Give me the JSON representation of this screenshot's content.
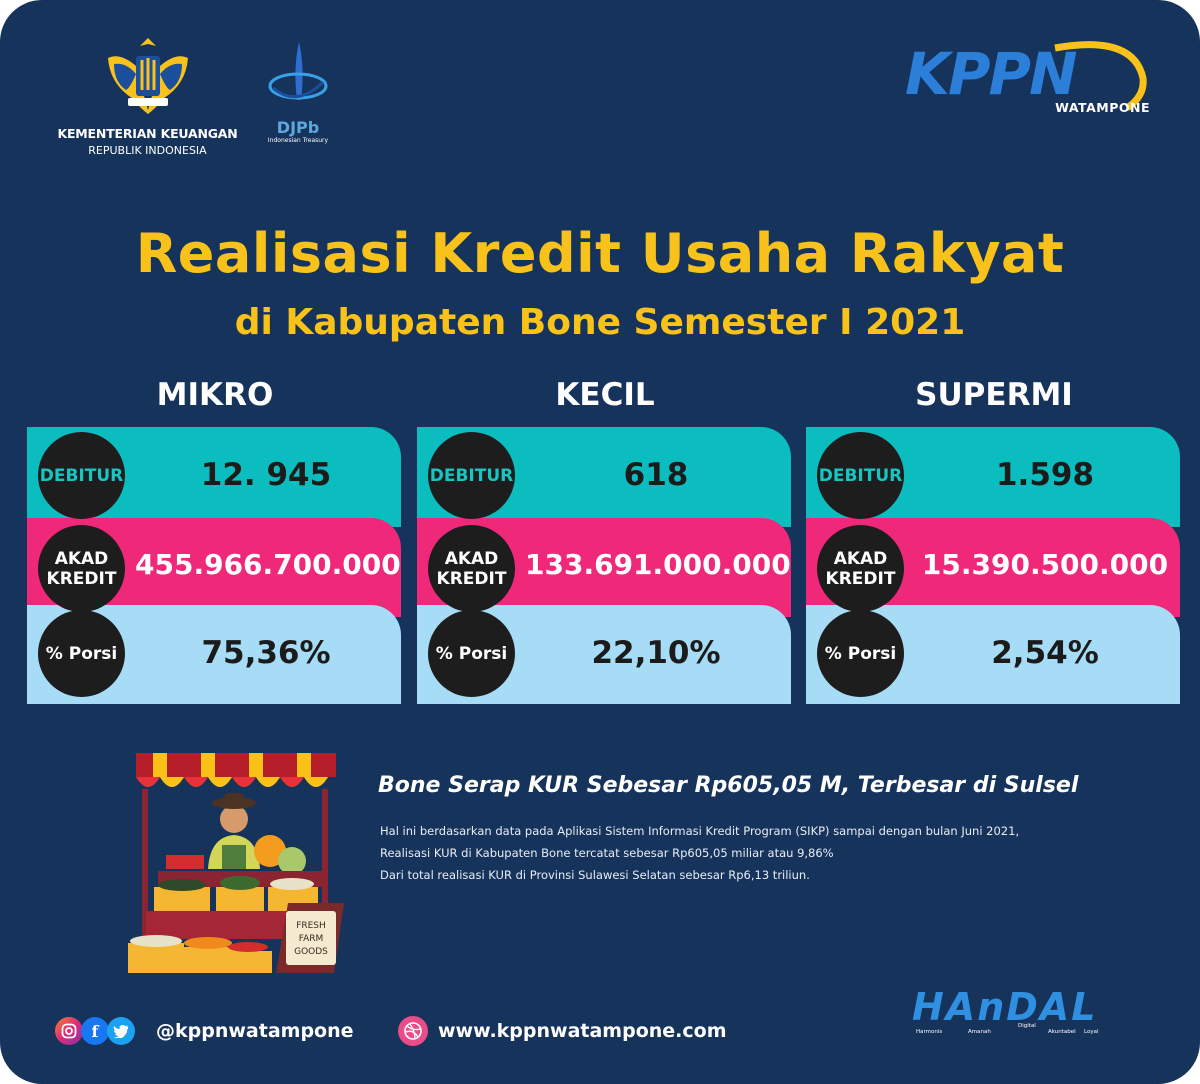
{
  "header": {
    "ministry_line1": "KEMENTERIAN KEUANGAN",
    "ministry_line2": "REPUBLIK INDONESIA",
    "djpb_name": "DJPb",
    "djpb_sub": "Indonesian Treasury",
    "kppn_word": "KPPN",
    "kppn_city": "WATAMPONE"
  },
  "title": {
    "line1": "Realisasi Kredit Usaha Rakyat",
    "line2": "di Kabupaten Bone Semester I 2021"
  },
  "labels": {
    "debitur": "DEBITUR",
    "akad1": "AKAD",
    "akad2": "KREDIT",
    "porsi": "% Porsi"
  },
  "categories": [
    {
      "name": "MIKRO",
      "debitur": "12. 945",
      "akad_kredit": "455.966.700.000",
      "porsi": "75,36%"
    },
    {
      "name": "KECIL",
      "debitur": "618",
      "akad_kredit": "133.691.000.000",
      "porsi": "22,10%"
    },
    {
      "name": "SUPERMI",
      "debitur": "1.598",
      "akad_kredit": "15.390.500.000",
      "porsi": "2,54%"
    }
  ],
  "news": {
    "headline": "Bone Serap KUR Sebesar Rp605,05 M, Terbesar di Sulsel",
    "lines": [
      "Hal ini berdasarkan data pada Aplikasi Sistem Informasi Kredit Program (SIKP) sampai dengan bulan Juni 2021,",
      "Realisasi KUR di Kabupaten Bone tercatat sebesar Rp605,05 miliar atau 9,86%",
      "Dari total realisasi KUR di Provinsi Sulawesi Selatan sebesar Rp6,13 triliun."
    ]
  },
  "illustration": {
    "sign_line1": "FRESH",
    "sign_line2": "FARM",
    "sign_line3": "GOODS"
  },
  "footer": {
    "social_icons": [
      "instagram-icon",
      "facebook-icon",
      "twitter-icon"
    ],
    "handle": "@kppnwatampone",
    "website": "www.kppnwatampone.com",
    "handal_word": "HAnDAL",
    "handal_values": [
      "Harmonis",
      "Amanah",
      "Digital",
      "Akuntabel",
      "Loyal"
    ]
  },
  "colors": {
    "background": "#16335c",
    "title": "#f8c21b",
    "teal": "#0bbdbf",
    "pink": "#f0287a",
    "light_blue": "#a6dcf6"
  }
}
